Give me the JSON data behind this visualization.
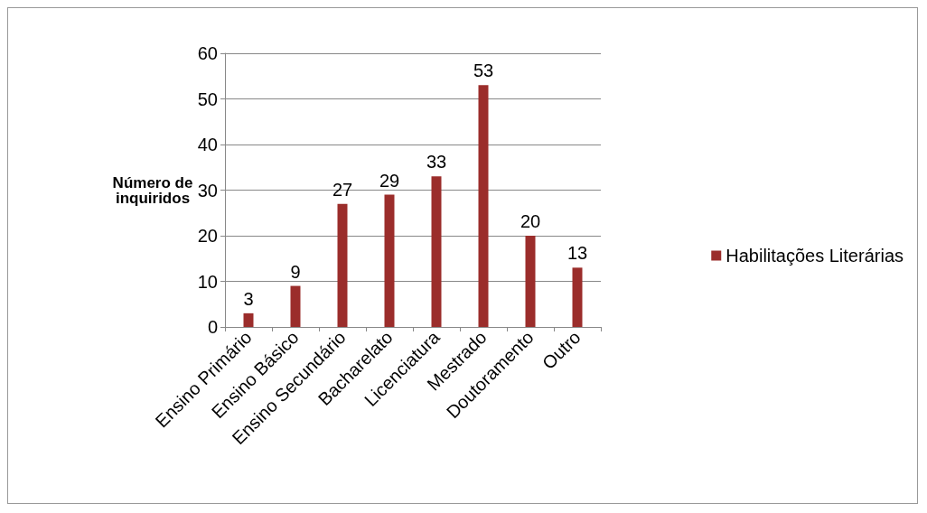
{
  "chart_data": {
    "type": "bar",
    "categories": [
      "Ensino Primário",
      "Ensino Básico",
      "Ensino Secundário",
      "Bacharelato",
      "Licenciatura",
      "Mestrado",
      "Doutoramento",
      "Outro"
    ],
    "series": [
      {
        "name": "Habilitações Literárias",
        "color": "#9b2d2b",
        "values": [
          3,
          9,
          27,
          29,
          33,
          53,
          20,
          13
        ]
      }
    ],
    "ylabel": "Número de\ninquiridos",
    "ylim": [
      0,
      60
    ],
    "yticks": [
      0,
      10,
      20,
      30,
      40,
      50,
      60
    ],
    "grid": "y",
    "legend": "right",
    "data_labels": true
  }
}
